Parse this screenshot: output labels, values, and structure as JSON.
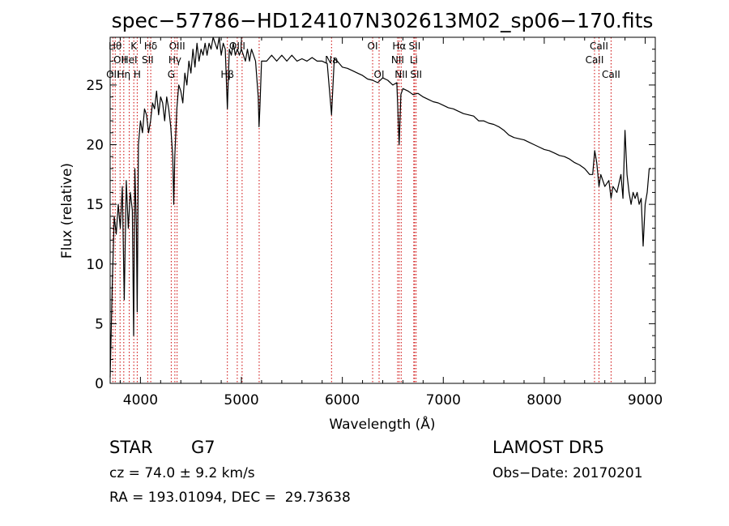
{
  "chart_data": {
    "type": "line",
    "title": "spec−57786−HD124107N302613M02_sp06−170.fits",
    "xlabel": "Wavelength (Å)",
    "ylabel": "Flux (relative)",
    "xlim": [
      3700,
      9100
    ],
    "ylim": [
      0,
      29
    ],
    "x_ticks": [
      {
        "value": 4000,
        "label": "4000"
      },
      {
        "value": 5000,
        "label": "5000"
      },
      {
        "value": 6000,
        "label": "6000"
      },
      {
        "value": 7000,
        "label": "7000"
      },
      {
        "value": 8000,
        "label": "8000"
      },
      {
        "value": 9000,
        "label": "9000"
      }
    ],
    "y_ticks": [
      {
        "value": 0,
        "label": "0"
      },
      {
        "value": 5,
        "label": "5"
      },
      {
        "value": 10,
        "label": "10"
      },
      {
        "value": 15,
        "label": "15"
      },
      {
        "value": 20,
        "label": "20"
      },
      {
        "value": 25,
        "label": "25"
      }
    ],
    "series": [
      {
        "points": [
          [
            3700,
            0.5
          ],
          [
            3720,
            8
          ],
          [
            3740,
            14
          ],
          [
            3760,
            12.5
          ],
          [
            3780,
            15
          ],
          [
            3800,
            13
          ],
          [
            3820,
            16.5
          ],
          [
            3840,
            7
          ],
          [
            3860,
            17
          ],
          [
            3880,
            13
          ],
          [
            3900,
            16
          ],
          [
            3920,
            14.5
          ],
          [
            3933,
            4
          ],
          [
            3945,
            18
          ],
          [
            3960,
            13
          ],
          [
            3968,
            6
          ],
          [
            3980,
            20
          ],
          [
            4000,
            22
          ],
          [
            4020,
            21
          ],
          [
            4040,
            23
          ],
          [
            4060,
            22.5
          ],
          [
            4080,
            21
          ],
          [
            4100,
            22
          ],
          [
            4120,
            23.5
          ],
          [
            4140,
            23
          ],
          [
            4160,
            24.5
          ],
          [
            4180,
            22.5
          ],
          [
            4200,
            24
          ],
          [
            4220,
            23.5
          ],
          [
            4240,
            22
          ],
          [
            4260,
            24
          ],
          [
            4280,
            23
          ],
          [
            4300,
            21.5
          ],
          [
            4320,
            19
          ],
          [
            4330,
            15
          ],
          [
            4340,
            19
          ],
          [
            4360,
            23
          ],
          [
            4380,
            25
          ],
          [
            4400,
            24.5
          ],
          [
            4420,
            23.5
          ],
          [
            4440,
            26
          ],
          [
            4460,
            25
          ],
          [
            4480,
            27
          ],
          [
            4500,
            26
          ],
          [
            4520,
            28
          ],
          [
            4540,
            26.5
          ],
          [
            4560,
            28.5
          ],
          [
            4580,
            27
          ],
          [
            4600,
            28
          ],
          [
            4620,
            27.5
          ],
          [
            4640,
            28.5
          ],
          [
            4660,
            27.5
          ],
          [
            4680,
            28.5
          ],
          [
            4700,
            28
          ],
          [
            4720,
            29
          ],
          [
            4740,
            28.5
          ],
          [
            4760,
            28
          ],
          [
            4780,
            29
          ],
          [
            4800,
            27.5
          ],
          [
            4820,
            28.5
          ],
          [
            4840,
            28
          ],
          [
            4861,
            23
          ],
          [
            4880,
            28
          ],
          [
            4900,
            27.5
          ],
          [
            4920,
            28.5
          ],
          [
            4940,
            27.5
          ],
          [
            4960,
            28
          ],
          [
            4980,
            27.5
          ],
          [
            5000,
            28
          ],
          [
            5020,
            27.5
          ],
          [
            5040,
            27
          ],
          [
            5060,
            28
          ],
          [
            5080,
            27
          ],
          [
            5100,
            28
          ],
          [
            5120,
            27.5
          ],
          [
            5140,
            27
          ],
          [
            5167,
            24
          ],
          [
            5175,
            21.5
          ],
          [
            5183,
            23
          ],
          [
            5200,
            27
          ],
          [
            5250,
            27
          ],
          [
            5300,
            27.5
          ],
          [
            5350,
            27
          ],
          [
            5400,
            27.5
          ],
          [
            5450,
            27
          ],
          [
            5500,
            27.5
          ],
          [
            5550,
            27
          ],
          [
            5600,
            27.2
          ],
          [
            5650,
            27
          ],
          [
            5700,
            27.3
          ],
          [
            5750,
            27
          ],
          [
            5800,
            27
          ],
          [
            5850,
            26.8
          ],
          [
            5893,
            22.5
          ],
          [
            5920,
            27.2
          ],
          [
            5950,
            27
          ],
          [
            6000,
            26.5
          ],
          [
            6050,
            26.4
          ],
          [
            6100,
            26.2
          ],
          [
            6150,
            26
          ],
          [
            6200,
            25.8
          ],
          [
            6250,
            25.5
          ],
          [
            6300,
            25.4
          ],
          [
            6350,
            25.2
          ],
          [
            6400,
            25.6
          ],
          [
            6450,
            25.4
          ],
          [
            6500,
            25
          ],
          [
            6540,
            25.2
          ],
          [
            6563,
            20
          ],
          [
            6580,
            24.2
          ],
          [
            6600,
            24.7
          ],
          [
            6650,
            24.5
          ],
          [
            6700,
            24.2
          ],
          [
            6750,
            24.3
          ],
          [
            6800,
            24
          ],
          [
            6850,
            23.8
          ],
          [
            6900,
            23.6
          ],
          [
            6950,
            23.5
          ],
          [
            7000,
            23.3
          ],
          [
            7050,
            23.1
          ],
          [
            7100,
            23
          ],
          [
            7150,
            22.8
          ],
          [
            7200,
            22.6
          ],
          [
            7250,
            22.5
          ],
          [
            7300,
            22.4
          ],
          [
            7350,
            22
          ],
          [
            7400,
            22
          ],
          [
            7450,
            21.8
          ],
          [
            7500,
            21.7
          ],
          [
            7550,
            21.5
          ],
          [
            7600,
            21.2
          ],
          [
            7650,
            20.8
          ],
          [
            7700,
            20.6
          ],
          [
            7750,
            20.5
          ],
          [
            7800,
            20.4
          ],
          [
            7850,
            20.2
          ],
          [
            7900,
            20
          ],
          [
            7950,
            19.8
          ],
          [
            8000,
            19.6
          ],
          [
            8050,
            19.5
          ],
          [
            8100,
            19.3
          ],
          [
            8150,
            19.1
          ],
          [
            8200,
            19
          ],
          [
            8250,
            18.8
          ],
          [
            8300,
            18.5
          ],
          [
            8350,
            18.3
          ],
          [
            8400,
            18
          ],
          [
            8450,
            17.5
          ],
          [
            8480,
            17.5
          ],
          [
            8500,
            19.5
          ],
          [
            8520,
            18.5
          ],
          [
            8542,
            16.5
          ],
          [
            8560,
            17.5
          ],
          [
            8600,
            16.5
          ],
          [
            8640,
            17
          ],
          [
            8662,
            15.5
          ],
          [
            8680,
            16.5
          ],
          [
            8720,
            16
          ],
          [
            8760,
            17.5
          ],
          [
            8780,
            15.5
          ],
          [
            8800,
            21.2
          ],
          [
            8820,
            17.5
          ],
          [
            8840,
            16
          ],
          [
            8860,
            15
          ],
          [
            8880,
            16
          ],
          [
            8900,
            15.5
          ],
          [
            8920,
            16
          ],
          [
            8940,
            15
          ],
          [
            8960,
            15.5
          ],
          [
            8980,
            11.5
          ],
          [
            9000,
            15
          ],
          [
            9020,
            16
          ],
          [
            9040,
            18
          ],
          [
            9060,
            18
          ]
        ]
      }
    ],
    "spectral_lines": [
      {
        "x": 3727,
        "label": "OII",
        "row": 3
      },
      {
        "x": 3750,
        "label": "Hθ",
        "row": 1
      },
      {
        "x": 3798,
        "label": "OII",
        "row": 2
      },
      {
        "x": 3835,
        "label": "Hη",
        "row": 3
      },
      {
        "x": 3889,
        "label": "HeI",
        "row": 2
      },
      {
        "x": 3934,
        "label": "K",
        "row": 1
      },
      {
        "x": 3968,
        "label": "H",
        "row": 3
      },
      {
        "x": 4072,
        "label": "SII",
        "row": 2
      },
      {
        "x": 4102,
        "label": "Hδ",
        "row": 1
      },
      {
        "x": 4305,
        "label": "G",
        "row": 3
      },
      {
        "x": 4341,
        "label": "Hγ",
        "row": 2
      },
      {
        "x": 4363,
        "label": "OIII",
        "row": 1
      },
      {
        "x": 4861,
        "label": "Hβ",
        "row": 3
      },
      {
        "x": 4959,
        "label": "OIII",
        "row": 1
      },
      {
        "x": 5007,
        "label": "",
        "row": 0
      },
      {
        "x": 5176,
        "label": "",
        "row": 0
      },
      {
        "x": 5893,
        "label": "Na",
        "row": 2
      },
      {
        "x": 6300,
        "label": "OI",
        "row": 1
      },
      {
        "x": 6364,
        "label": "OI",
        "row": 3
      },
      {
        "x": 6548,
        "label": "NII",
        "row": 2
      },
      {
        "x": 6563,
        "label": "Hα",
        "row": 1
      },
      {
        "x": 6583,
        "label": "NII",
        "row": 3
      },
      {
        "x": 6708,
        "label": "Li",
        "row": 2
      },
      {
        "x": 6716,
        "label": "SII",
        "row": 1
      },
      {
        "x": 6731,
        "label": "SII",
        "row": 3
      },
      {
        "x": 8498,
        "label": "CaII",
        "row": 2
      },
      {
        "x": 8542,
        "label": "CaII",
        "row": 1
      },
      {
        "x": 8662,
        "label": "CaII",
        "row": 3
      }
    ],
    "grid": false,
    "line_color": "#000000",
    "marker_color": "#cc0000"
  },
  "info": {
    "class": "STAR",
    "subclass": "G7",
    "survey": "LAMOST DR5",
    "cz": "cz = 74.0 ± 9.2 km/s",
    "obs_date": "Obs−Date: 20170201",
    "coords": "RA = 193.01094, DEC =  29.73638"
  }
}
